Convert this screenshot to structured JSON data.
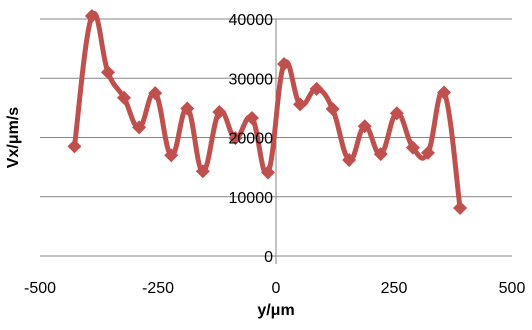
{
  "chart_data": {
    "type": "line",
    "title": "",
    "xlabel": "y/μm",
    "ylabel": "Vx/μm/s",
    "xlim": [
      -500,
      500
    ],
    "ylim": [
      0,
      40000
    ],
    "x_ticks": [
      "-500",
      "-250",
      "0",
      "250",
      "500"
    ],
    "y_ticks": [
      "0",
      "10000",
      "20000",
      "30000",
      "40000"
    ],
    "grid": "horizontal",
    "legend": "none",
    "series": [
      {
        "color": "#c0504d",
        "marker": "diamond",
        "line": "smooth",
        "points": [
          {
            "x": -427,
            "y": 18500
          },
          {
            "x": -390,
            "y": 40500
          },
          {
            "x": -356,
            "y": 31000
          },
          {
            "x": -322,
            "y": 26700
          },
          {
            "x": -290,
            "y": 21700
          },
          {
            "x": -256,
            "y": 27500
          },
          {
            "x": -222,
            "y": 17000
          },
          {
            "x": -188,
            "y": 24900
          },
          {
            "x": -155,
            "y": 14300
          },
          {
            "x": -120,
            "y": 24300
          },
          {
            "x": -86,
            "y": 19900
          },
          {
            "x": -51,
            "y": 23300
          },
          {
            "x": -17,
            "y": 14100
          },
          {
            "x": 17,
            "y": 32400
          },
          {
            "x": 51,
            "y": 25600
          },
          {
            "x": 86,
            "y": 28200
          },
          {
            "x": 120,
            "y": 24800
          },
          {
            "x": 155,
            "y": 16200
          },
          {
            "x": 188,
            "y": 21900
          },
          {
            "x": 222,
            "y": 17200
          },
          {
            "x": 256,
            "y": 24100
          },
          {
            "x": 290,
            "y": 18300
          },
          {
            "x": 322,
            "y": 17400
          },
          {
            "x": 356,
            "y": 27600
          },
          {
            "x": 390,
            "y": 8100
          }
        ]
      }
    ]
  }
}
